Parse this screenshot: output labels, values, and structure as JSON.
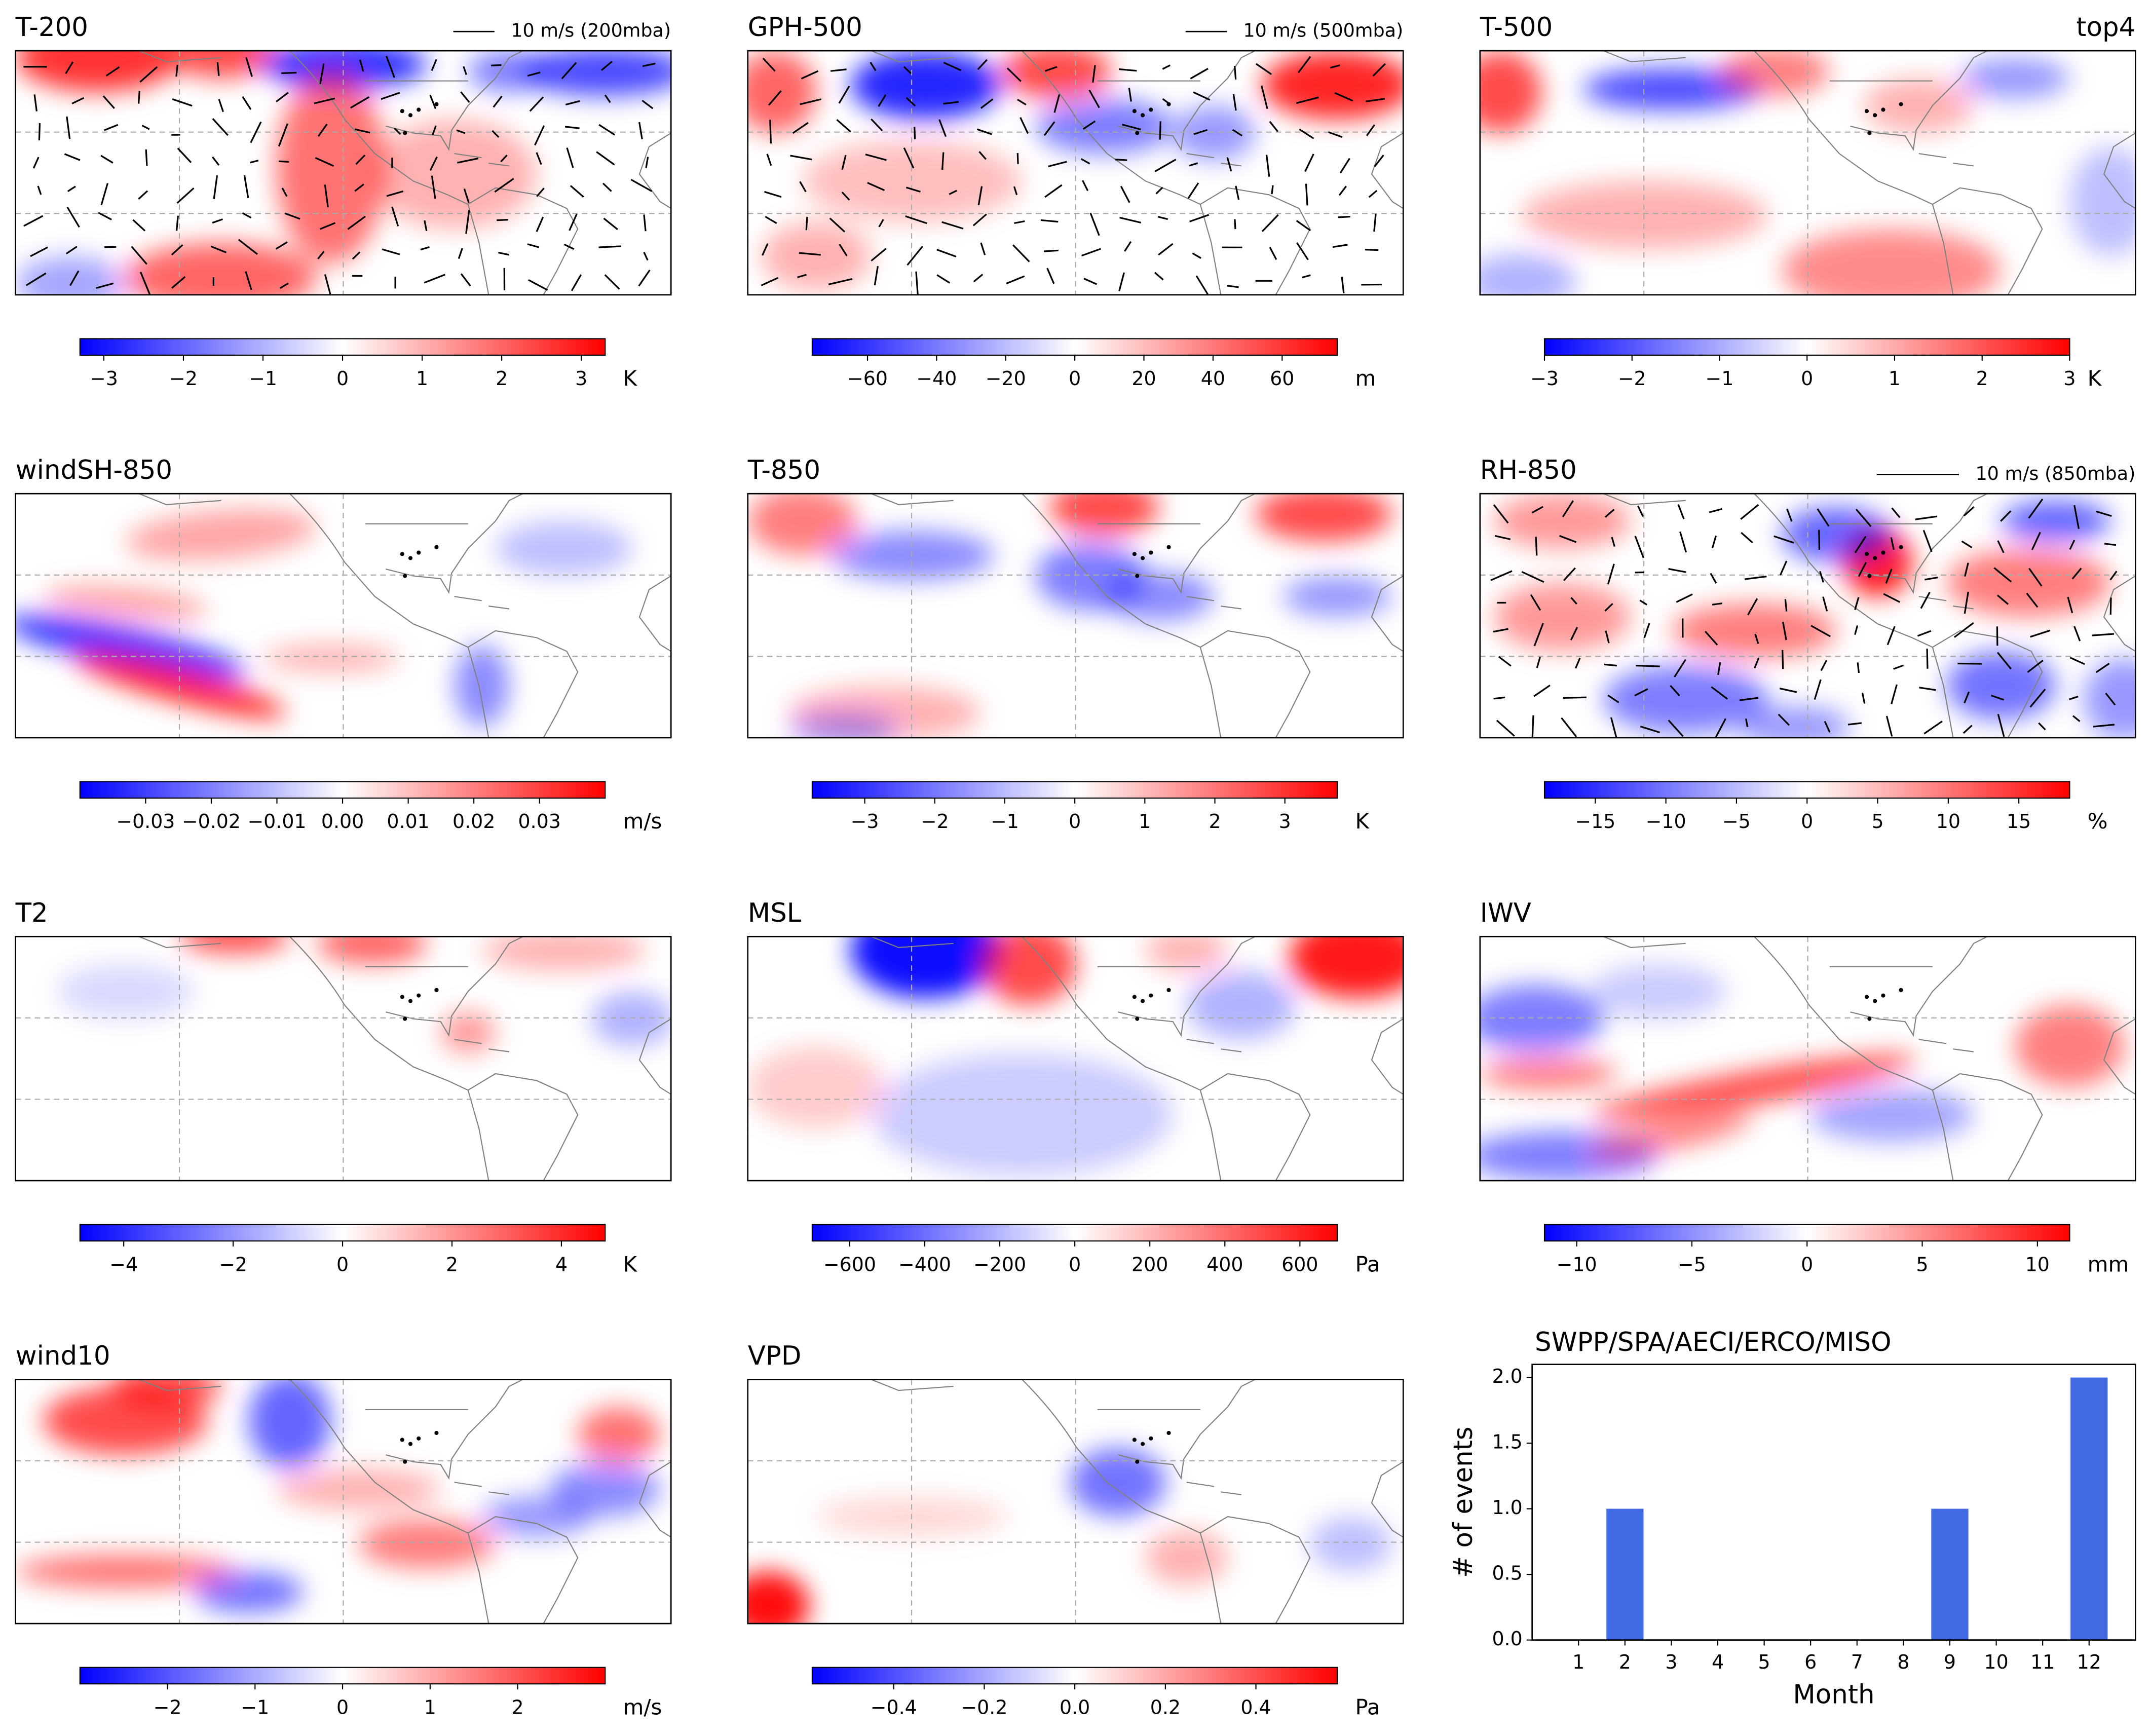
{
  "chart_data": [
    {
      "type": "map",
      "title": "T-200",
      "vector_key": "10 m/s (200mba)",
      "cmap": "bwr",
      "clim": [
        -3.3,
        3.3
      ],
      "cbar_label": "K",
      "cticks": [
        {
          "value": -3,
          "label": "−3"
        },
        {
          "value": -2,
          "label": "−2"
        },
        {
          "value": -1,
          "label": "−1"
        },
        0,
        1,
        2,
        3
      ]
    },
    {
      "type": "map",
      "title": "GPH-500",
      "vector_key": "10 m/s (500mba)",
      "cmap": "bwr",
      "clim": [
        -76,
        76
      ],
      "cbar_label": "m",
      "cticks": [
        {
          "value": -60,
          "label": "−60"
        },
        {
          "value": -40,
          "label": "−40"
        },
        {
          "value": -20,
          "label": "−20"
        },
        0,
        20,
        40,
        60
      ]
    },
    {
      "type": "map",
      "title": "T-500",
      "annotation": "top4",
      "cmap": "bwr",
      "clim": [
        -3,
        3
      ],
      "cbar_label": "K",
      "cticks": [
        {
          "value": -3,
          "label": "−3"
        },
        {
          "value": -2,
          "label": "−2"
        },
        {
          "value": -1,
          "label": "−1"
        },
        0,
        1,
        2,
        3
      ]
    },
    {
      "type": "map",
      "title": "windSH-850",
      "cmap": "bwr",
      "clim": [
        -0.04,
        0.04
      ],
      "cbar_label": "m/s",
      "cticks": [
        {
          "value": -0.03,
          "label": "−0.03"
        },
        {
          "value": -0.02,
          "label": "−0.02"
        },
        {
          "value": -0.01,
          "label": "−0.01"
        },
        {
          "value": 0,
          "label": "0.00"
        },
        0.01,
        0.02,
        0.03
      ]
    },
    {
      "type": "map",
      "title": "T-850",
      "cmap": "bwr",
      "clim": [
        -3.75,
        3.75
      ],
      "cbar_label": "K",
      "cticks": [
        {
          "value": -3,
          "label": "−3"
        },
        {
          "value": -2,
          "label": "−2"
        },
        {
          "value": -1,
          "label": "−1"
        },
        0,
        1,
        2,
        3
      ]
    },
    {
      "type": "map",
      "title": "RH-850",
      "vector_key": "10 m/s (850mba)",
      "cmap": "bwr",
      "clim": [
        -18.6,
        18.6
      ],
      "cbar_label": "%",
      "cticks": [
        {
          "value": -15,
          "label": "−15"
        },
        {
          "value": -10,
          "label": "−10"
        },
        {
          "value": -5,
          "label": "−5"
        },
        0,
        5,
        10,
        15
      ]
    },
    {
      "type": "map",
      "title": "T2",
      "cmap": "bwr",
      "clim": [
        -4.8,
        4.8
      ],
      "cbar_label": "K",
      "cticks": [
        {
          "value": -4,
          "label": "−4"
        },
        {
          "value": -2,
          "label": "−2"
        },
        0,
        2,
        4
      ]
    },
    {
      "type": "map",
      "title": "MSL",
      "cmap": "bwr",
      "clim": [
        -700,
        700
      ],
      "cbar_label": "Pa",
      "cticks": [
        {
          "value": -600,
          "label": "−600"
        },
        {
          "value": -400,
          "label": "−400"
        },
        {
          "value": -200,
          "label": "−200"
        },
        0,
        200,
        400,
        600
      ]
    },
    {
      "type": "map",
      "title": "IWV",
      "cmap": "bwr",
      "clim": [
        -11.4,
        11.4
      ],
      "cbar_label": "mm",
      "cticks": [
        {
          "value": -10,
          "label": "−10"
        },
        {
          "value": -5,
          "label": "−5"
        },
        0,
        5,
        10
      ]
    },
    {
      "type": "map",
      "title": "wind10",
      "cmap": "bwr",
      "clim": [
        -3,
        3
      ],
      "cbar_label": "m/s",
      "cticks": [
        {
          "value": -2,
          "label": "−2"
        },
        {
          "value": -1,
          "label": "−1"
        },
        0,
        1,
        2
      ]
    },
    {
      "type": "map",
      "title": "VPD",
      "cmap": "bwr",
      "clim": [
        -0.58,
        0.58
      ],
      "cbar_label": "Pa",
      "cticks": [
        {
          "value": -0.4,
          "label": "−0.4"
        },
        {
          "value": -0.2,
          "label": "−0.2"
        },
        {
          "value": 0,
          "label": "0.0"
        },
        0.2,
        0.4
      ]
    },
    {
      "type": "bar",
      "title": "SWPP/SPA/AECI/ERCO/MISO",
      "xlabel": "Month",
      "ylabel": "# of events",
      "color": "#4169e1",
      "x": [
        1,
        2,
        3,
        4,
        5,
        6,
        7,
        8,
        9,
        10,
        11,
        12
      ],
      "values": [
        0,
        1,
        0,
        0,
        0,
        0,
        0,
        0,
        1,
        0,
        0,
        2
      ],
      "xlim": [
        0,
        13
      ],
      "ylim": [
        0,
        2.1
      ],
      "yticks": [
        {
          "value": 0,
          "label": "0.0"
        },
        {
          "value": 0.5,
          "label": "0.5"
        },
        {
          "value": 1,
          "label": "1.0"
        },
        {
          "value": 1.5,
          "label": "1.5"
        },
        {
          "value": 2,
          "label": "2.0"
        }
      ]
    }
  ]
}
